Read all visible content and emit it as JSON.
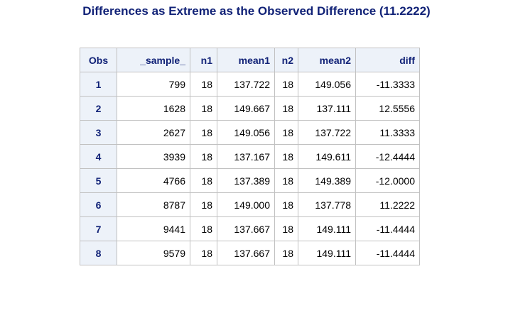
{
  "title": "Differences as Extreme as the Observed Difference (11.2222)",
  "columns": [
    "Obs",
    "_sample_",
    "n1",
    "mean1",
    "n2",
    "mean2",
    "diff"
  ],
  "rows": [
    [
      "1",
      "799",
      "18",
      "137.722",
      "18",
      "149.056",
      "-11.3333"
    ],
    [
      "2",
      "1628",
      "18",
      "149.667",
      "18",
      "137.111",
      "12.5556"
    ],
    [
      "3",
      "2627",
      "18",
      "149.056",
      "18",
      "137.722",
      "11.3333"
    ],
    [
      "4",
      "3939",
      "18",
      "137.167",
      "18",
      "149.611",
      "-12.4444"
    ],
    [
      "5",
      "4766",
      "18",
      "137.389",
      "18",
      "149.389",
      "-12.0000"
    ],
    [
      "6",
      "8787",
      "18",
      "149.000",
      "18",
      "137.778",
      "11.2222"
    ],
    [
      "7",
      "9441",
      "18",
      "137.667",
      "18",
      "149.111",
      "-11.4444"
    ],
    [
      "8",
      "9579",
      "18",
      "137.667",
      "18",
      "149.111",
      "-11.4444"
    ]
  ],
  "colors": {
    "title": "#112277",
    "header_bg": "#edf2f9",
    "border": "#c1c1c1"
  }
}
